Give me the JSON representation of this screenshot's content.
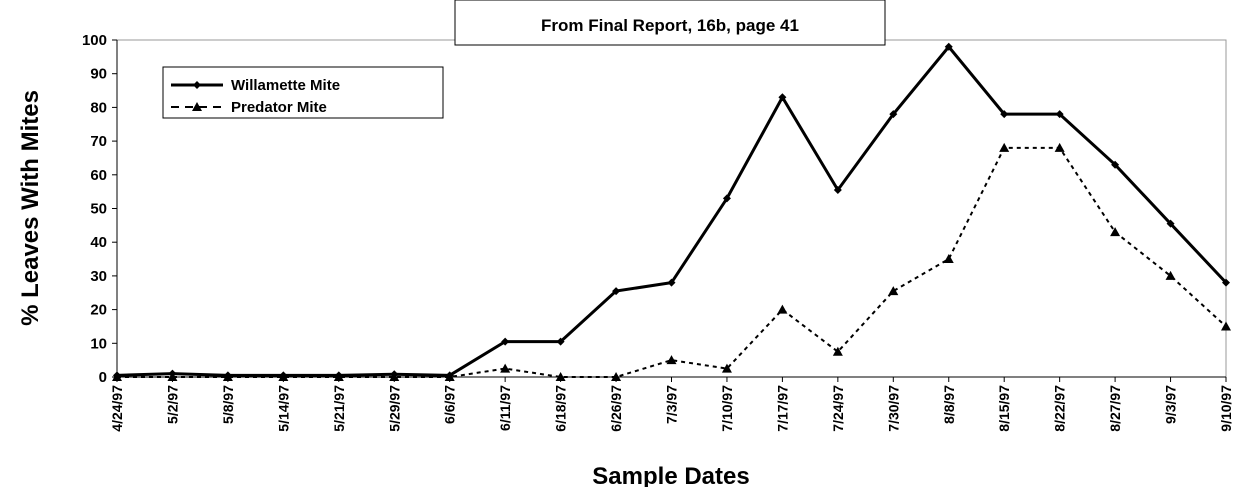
{
  "chart_data": {
    "type": "line",
    "annotation": "From Final Report, 16b, page 41",
    "y_label": "% Leaves With Mites",
    "x_label": "Sample Dates",
    "categories": [
      "4/24/97",
      "5/2/97",
      "5/8/97",
      "5/14/97",
      "5/21/97",
      "5/29/97",
      "6/6/97",
      "6/11/97",
      "6/18/97",
      "6/26/97",
      "7/3/97",
      "7/10/97",
      "7/17/97",
      "7/24/97",
      "7/30/97",
      "8/8/97",
      "8/15/97",
      "8/22/97",
      "8/27/97",
      "9/3/97",
      "9/10/97"
    ],
    "series": [
      {
        "name": "Willamette Mite",
        "color": "#000000",
        "dash": "solid",
        "marker": "diamond",
        "values": [
          0.5,
          1,
          0.5,
          0.5,
          0.5,
          0.8,
          0.5,
          10.5,
          10.5,
          25.5,
          28,
          53,
          83,
          55.5,
          78,
          98,
          78,
          78,
          63,
          45.5,
          28
        ]
      },
      {
        "name": "Predator Mite",
        "color": "#000000",
        "dash": "dashed",
        "marker": "triangle",
        "values": [
          0,
          0,
          0,
          0,
          0,
          0,
          0,
          2.5,
          0,
          0,
          5,
          2.5,
          20,
          7.5,
          25.5,
          35,
          68,
          68,
          43,
          30,
          15
        ]
      }
    ],
    "ylim": [
      0,
      100
    ],
    "yticks": [
      0,
      10,
      20,
      30,
      40,
      50,
      60,
      70,
      80,
      90,
      100
    ],
    "grid": false,
    "legend": "upper left"
  }
}
